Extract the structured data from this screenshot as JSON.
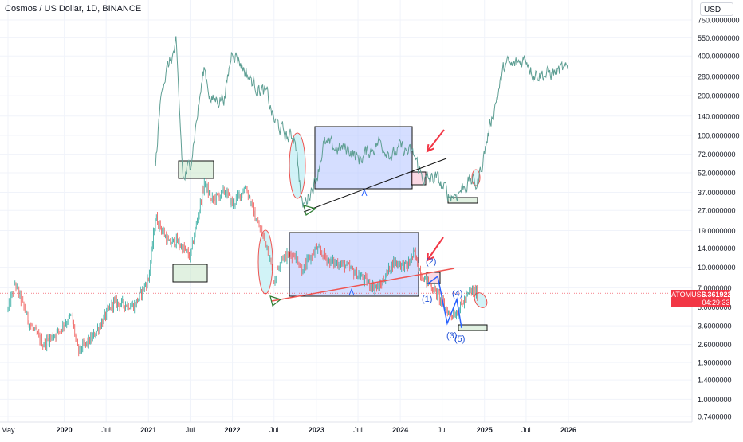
{
  "header": {
    "title": "Cosmos / US Dollar, 1D, BINANCE"
  },
  "currency_button": "USD",
  "price_label": {
    "symbol": "ATOMUSD",
    "price": "6.3619228",
    "countdown": "04:29:33"
  },
  "colors": {
    "up": "#26a69a",
    "down": "#ef5350",
    "upper_series": "#5f9f94",
    "box_fill": "#b3c3ff",
    "accent_red": "#f23645",
    "wave_blue": "#2962ff",
    "box_green": "#c8e6c9"
  },
  "chart_data": {
    "type": "line",
    "title": "Cosmos / US Dollar, 1D, BINANCE",
    "y_scale": "log",
    "ylim": [
      0.74,
      750
    ],
    "ytick_labels": [
      "750.0000000",
      "550.0000000",
      "400.0000000",
      "280.0000000",
      "200.0000000",
      "140.0000000",
      "100.0000000",
      "72.0000000",
      "52.0000000",
      "37.0000000",
      "27.0000000",
      "19.0000000",
      "14.0000000",
      "10.0000000",
      "7.0000000",
      "5.0000000",
      "3.6000000",
      "2.6000000",
      "1.9000000",
      "1.4000000",
      "1.0000000",
      "0.7400000"
    ],
    "ytick_values": [
      750,
      550,
      400,
      280,
      200,
      140,
      100,
      72,
      52,
      37,
      27,
      19,
      14,
      10,
      7,
      5,
      3.6,
      2.6,
      1.9,
      1.4,
      1.0,
      0.74
    ],
    "xtick_labels": [
      "May",
      "2020",
      "Jul",
      "2021",
      "Jul",
      "2022",
      "Jul",
      "2023",
      "Jul",
      "2024",
      "Jul",
      "2025",
      "Jul",
      "2026"
    ],
    "xtick_dates": [
      "2019-05",
      "2020-01",
      "2020-07",
      "2021-01",
      "2021-07",
      "2022-01",
      "2022-07",
      "2023-01",
      "2023-07",
      "2024-01",
      "2024-07",
      "2025-01",
      "2025-07",
      "2026-01"
    ],
    "grid": true,
    "series": [
      {
        "style": "candles",
        "x": [
          "2019-05",
          "2019-06",
          "2019-08",
          "2019-10",
          "2019-12",
          "2020-02",
          "2020-03",
          "2020-05",
          "2020-08",
          "2020-11",
          "2021-01",
          "2021-02",
          "2021-04",
          "2021-05",
          "2021-07",
          "2021-09",
          "2021-10",
          "2021-12",
          "2022-01",
          "2022-03",
          "2022-04",
          "2022-06",
          "2022-07",
          "2022-08",
          "2022-10",
          "2022-11",
          "2023-01",
          "2023-03",
          "2023-05",
          "2023-07",
          "2023-09",
          "2023-10",
          "2023-12",
          "2024-02",
          "2024-03",
          "2024-04",
          "2024-06",
          "2024-08",
          "2024-09",
          "2024-11",
          "2024-12"
        ],
        "y": [
          4.8,
          7.6,
          3.8,
          2.6,
          3.2,
          4.3,
          2.3,
          2.9,
          5.4,
          5.1,
          8.2,
          24,
          15,
          16,
          12,
          44,
          32,
          38,
          30,
          41,
          26,
          14.5,
          7.8,
          12,
          12.5,
          9.5,
          14,
          11,
          10.5,
          8.8,
          7.2,
          7,
          11,
          10.2,
          12.8,
          8.8,
          6.6,
          4.4,
          4.5,
          6.6,
          6.4
        ]
      },
      {
        "style": "line",
        "x": [
          "2021-02",
          "2021-03",
          "2021-05",
          "2021-06",
          "2021-07",
          "2021-09",
          "2021-10",
          "2021-12",
          "2022-01",
          "2022-03",
          "2022-04",
          "2022-06",
          "2022-07",
          "2022-09",
          "2022-10",
          "2022-11",
          "2023-01",
          "2023-02",
          "2023-04",
          "2023-06",
          "2023-07",
          "2023-09",
          "2023-10",
          "2023-12",
          "2024-01",
          "2024-03",
          "2024-04",
          "2024-05",
          "2024-06",
          "2024-08",
          "2024-09",
          "2024-11",
          "2024-12",
          "2025-01",
          "2025-02",
          "2025-04",
          "2025-05",
          "2025-07",
          "2025-08",
          "2025-10",
          "2025-12",
          "2026-01"
        ],
        "y": [
          60,
          250,
          470,
          45,
          60,
          330,
          180,
          200,
          460,
          300,
          250,
          200,
          130,
          95,
          100,
          28,
          48,
          85,
          80,
          78,
          65,
          80,
          90,
          70,
          80,
          70,
          50,
          45,
          48,
          35,
          36,
          46,
          42,
          75,
          135,
          350,
          330,
          390,
          300,
          290,
          310,
          300
        ]
      }
    ],
    "annotations": [
      "(1)",
      "(2)",
      "(3)",
      "(4)",
      "(5)"
    ]
  }
}
